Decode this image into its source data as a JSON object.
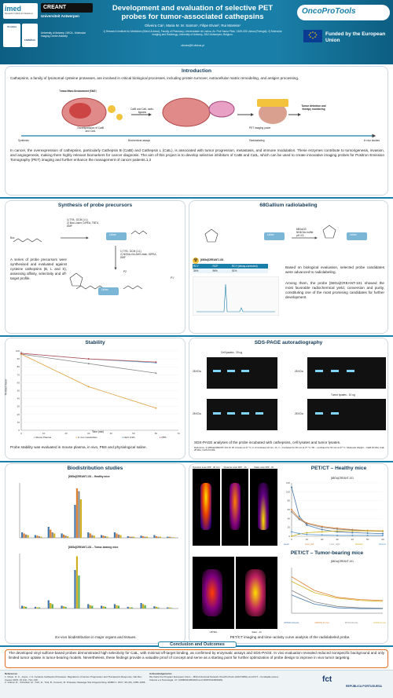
{
  "header": {
    "logos": {
      "imed": "imed",
      "imed_sub": "Research Institute for Medicines",
      "creant": "CREANT",
      "uantwerp": "Universiteit Antwerpen",
      "lisboa": "ULisboa",
      "antwerp_mi": "University of Antwerp | MICA - Molecular Imaging Center Antwerp",
      "uantwerp_faculty": "FARMÁCIA"
    },
    "title": "Development and evaluation of selective PET probes for tumor-associated cathepsins",
    "authors": "Oliveira Cai¹, Maria M. M. Santos¹, Filipe Elvas², Rui Moreira¹",
    "affiliations": "1) Research Institute for Medicines (iMed.ULisboa), Faculty of Pharmacy, Universidade de Lisboa, Av. Prof Gama Pinto, 1649-003 Lisboa (Portugal). 2) Molecular Imaging and Radiology, University of Antwerp, 2610 Antwerpen, Belgium.",
    "email": "oliveira@ff.ulisboa.pt",
    "brand": "OncoProTools",
    "funded": "Funded by the European Union"
  },
  "intro": {
    "title": "Introduction",
    "p1": "Cathepsins, a family of lysosomal cysteine proteases, are involved in critical biological processes, including protein turnover, extracellular matrix remodeling, and antigen processing.",
    "tme": "Tumor Micro Environment (TME)",
    "over": "Overexpression of CatB and CatL",
    "ligand": "CatB and CatL radio-ligands",
    "pet": "PET imaging probe",
    "tumor": "Tumor detection and therapy monitoring",
    "steps": [
      "Synthesis",
      "Biochemical assays",
      "Radiolabeling",
      "In vivo studies"
    ],
    "p2": "In cancer, the overexpression of cathepsins, particularly Cathepsin B (CatB) and Cathepsin L (CatL), is associated with tumor progression, metastasis, and immune modulation. These enzymes contribute to tumorigenesis, invasion, and angiogenesis, making them highly relevant biomarkers for cancer diagnosis. The aim of this project is to develop selective inhibitors of CatB and CatL, which can be used to create innovative imaging probes for Positron Emission Tomography (PET) imaging and further enhance the management of cancer patients.1,2"
  },
  "synthesis": {
    "title": "Synthesis of probe precursors",
    "reag1": "1) TFA : DCM (1:1)\n2) Boc-Linker, DIPEA, TBTU, DMF",
    "reag2": "1) TFA : DCM (1:1)\n2) NODA-GA-NHS ester, DIPEA, DMF",
    "linker": "Linker",
    "labels": [
      "P2",
      "P1'",
      "Boc"
    ],
    "text": "A series of probe precursors were synthesised and evaluated against cysteine cathepsins (B, L and S), assessing affinity, selectivity and off-target profile."
  },
  "gallium": {
    "title": "68Gallium radiolabeling",
    "conditions": "68GaCl3\nNH4OAc buffer\npH 4.5",
    "probe": "[68Ga]CREANT-101",
    "table_head": [
      "RCY",
      "RCP",
      "RCY (decay-corrected)"
    ],
    "table_vals": [
      "34%",
      "96%",
      "51%"
    ],
    "text": "Based on biological evaluation, selected probe candidates were advanced to radiolabeling.",
    "text2": "Among them, the probe [68Ga]CREANT-101 showed the most favorable radiochemical yield, conversion and purity, constituting one of the most promising candidates for further development."
  },
  "stability": {
    "title": "Stability",
    "ylabel": "% Intact tracer",
    "xlabel": "Time (min)",
    "legend": [
      "Mouse Plasma",
      "In vivo metabolites",
      "NaCl 0.9%",
      "PBS"
    ],
    "caption": "Probe stability was evaluated in mouse plasma, in vivo, PBS and physiological saline."
  },
  "sds": {
    "title": "SDS-PAGE autoradiography",
    "caption": "SDS-PAGE analyses of the probe incubated with cathepsins, cell lysates and tumor lysates.",
    "ref": "Reference: 1) [68Ga]CREANT-101 for 30 minutes at 37 °C; 2–3 incubated 10 min, 1h; 4 – Incubated for 60 min at 37 °C; 5D – incubated for 60 min at 37 °C. Molecular Weight – CatB 30 kDa; CatL 28 kDa; CatS 24 kDa.",
    "labels": [
      "Cell lysates - 20 ug",
      "Tumor lysates - 10 ug",
      "28 KDa",
      "MW"
    ]
  },
  "biodist": {
    "title": "Biodistribution studies",
    "heal": "[68Ga]CREANT-101 – Healthy mice",
    "tumor": "[68Ga]CREANT-101 – Tumor-bearing mice",
    "ylabel": "%ID/g",
    "caption": "Ex-vivo biodistribution in major organs and tissues."
  },
  "pet": {
    "title": "PET/CT – Healthy mice",
    "scans": [
      "Dynamic scan MIP - 30 min",
      "Dynamic scan MIP - 1h",
      "Static scan MIP - 2h"
    ],
    "curve_title": "[68Ga]CREANT-101",
    "legend": [
      "Heart",
      "Liver_left",
      "Liver_right",
      "Bladder",
      "Muscle"
    ],
    "title2": "PET/CT – Tumor-bearing mice",
    "scans2": [
      "U87MG",
      "Static - 1h"
    ],
    "legend2": [
      "U87MG Muscle",
      "U87MG Tumor",
      "RT29 Muscle",
      "RT29 Tumor"
    ],
    "xlabel": "Time (min)",
    "ylabel": "SUV",
    "caption": "PET/CT imaging and time–activity curve analysis of the radiolabeled probe."
  },
  "conclusion": {
    "title": "Conclusion and Outcomes",
    "text": "The developed vinyl sulfone-based probes demonstrated high selectivity for CatL, with minimal off-target binding, as confirmed by enzymatic assays and SDS-PAGE. In vivo evaluation revealed reduced nonspecific background and only limited tumor uptake in tumor-bearing models. Nevertheless, these findings provide a valuable proof of concept and serve as a starting point for further optimization of probe design to improve in vivo tumor targeting."
  },
  "footer": {
    "refs_title": "References",
    "refs": "1. Olson, O. C., Joyce, J. A. Cysteine Cathepsin Proteases: Regulators of Cancer Progression and Therapeutic Response. Nat Rev Cancer 2015, 15 (12), 712–729.\n2. Vidmar, R., Vizovisek, M., Turk, D., Turk, B., Fonovic, M. Protease Cleavage Site Fingerprinting. EMBO J. 2017, 36 (16), 2455–2465.",
    "ack_title": "Acknowledgements:",
    "ack": "We thank the Program European Union – MSCA Doctoral Network OncoProTools (101072891) and FCT – Fundação para a Ciência e a Tecnologia, I.P. (UIDB/04138/2020 and UIDP/04138/2020).",
    "fct": "fct",
    "rep": "REPÚBLICA PORTUGUESA"
  },
  "chart_data": [
    {
      "type": "line",
      "title": "",
      "xlabel": "Time (min)",
      "ylabel": "% Intact tracer",
      "x": [
        0,
        30,
        60
      ],
      "ylim": [
        0,
        100
      ],
      "xlim": [
        0,
        70
      ],
      "series": [
        {
          "name": "Mouse Plasma",
          "values": [
            96,
            84,
            72
          ]
        },
        {
          "name": "In vivo metabolites",
          "values": [
            96,
            55,
            28
          ]
        },
        {
          "name": "NaCl 0.9%",
          "values": [
            97,
            90,
            85
          ]
        },
        {
          "name": "PBS",
          "values": [
            97,
            90,
            86
          ]
        }
      ]
    },
    {
      "type": "line",
      "title": "[68Ga]CREANT-101",
      "xlabel": "Time (min)",
      "ylabel": "SUV",
      "x": [
        0,
        5,
        10,
        20,
        30,
        40,
        50,
        60
      ],
      "ylim": [
        0,
        120
      ],
      "series": [
        {
          "name": "Heart",
          "values": [
            110,
            45,
            25,
            15,
            10,
            8,
            7,
            6
          ]
        },
        {
          "name": "Liver_left",
          "values": [
            60,
            40,
            30,
            22,
            18,
            15,
            13,
            12
          ]
        },
        {
          "name": "Liver_right",
          "values": [
            55,
            38,
            28,
            20,
            16,
            14,
            12,
            11
          ]
        },
        {
          "name": "Bladder",
          "values": [
            0,
            5,
            8,
            10,
            12,
            12,
            12,
            12
          ]
        },
        {
          "name": "Muscle",
          "values": [
            10,
            6,
            4,
            3,
            2,
            2,
            2,
            2
          ]
        }
      ]
    }
  ]
}
